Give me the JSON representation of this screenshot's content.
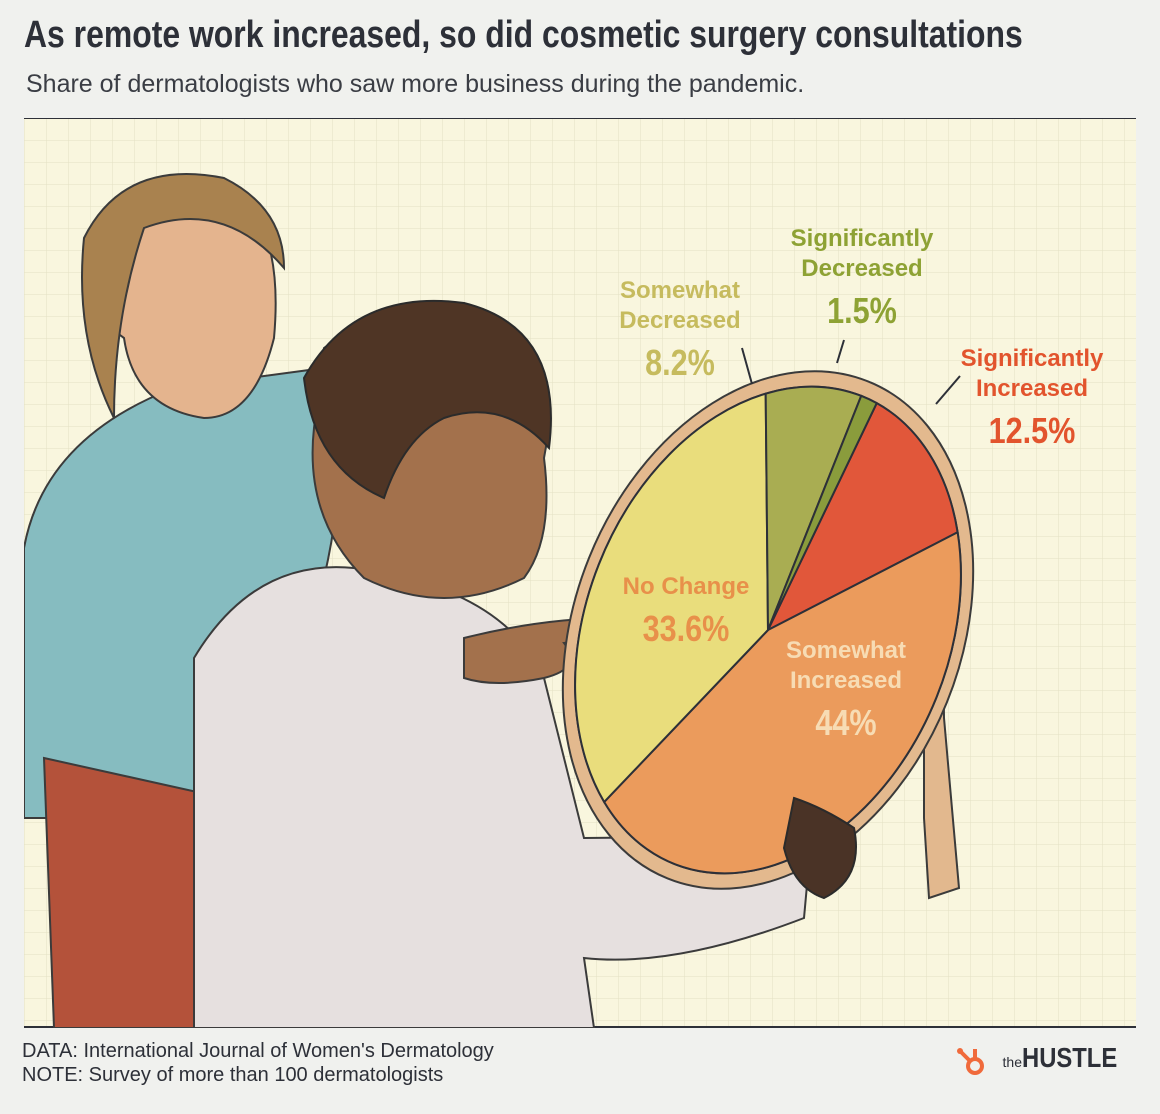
{
  "chart_data": {
    "type": "pie",
    "title": "As remote work increased, so did cosmetic surgery consultations",
    "subtitle": "Share of dermatologists who saw more business during the pandemic.",
    "categories": [
      "Significantly Increased",
      "Somewhat Increased",
      "No Change",
      "Somewhat Decreased",
      "Significantly Decreased"
    ],
    "values": [
      12.5,
      44,
      33.6,
      8.2,
      1.5
    ],
    "value_labels": [
      "12.5%",
      "44%",
      "33.6%",
      "8.2%",
      "1.5%"
    ],
    "colors": [
      "#e1573a",
      "#eb9b5c",
      "#e9dd7c",
      "#a9ad52",
      "#8a9c3c"
    ]
  },
  "footer": {
    "source": "DATA: International Journal of Women's Dermatology",
    "note": "NOTE: Survey of more than 100 dermatologists",
    "brand_prefix": "the",
    "brand": "HUSTLE"
  }
}
